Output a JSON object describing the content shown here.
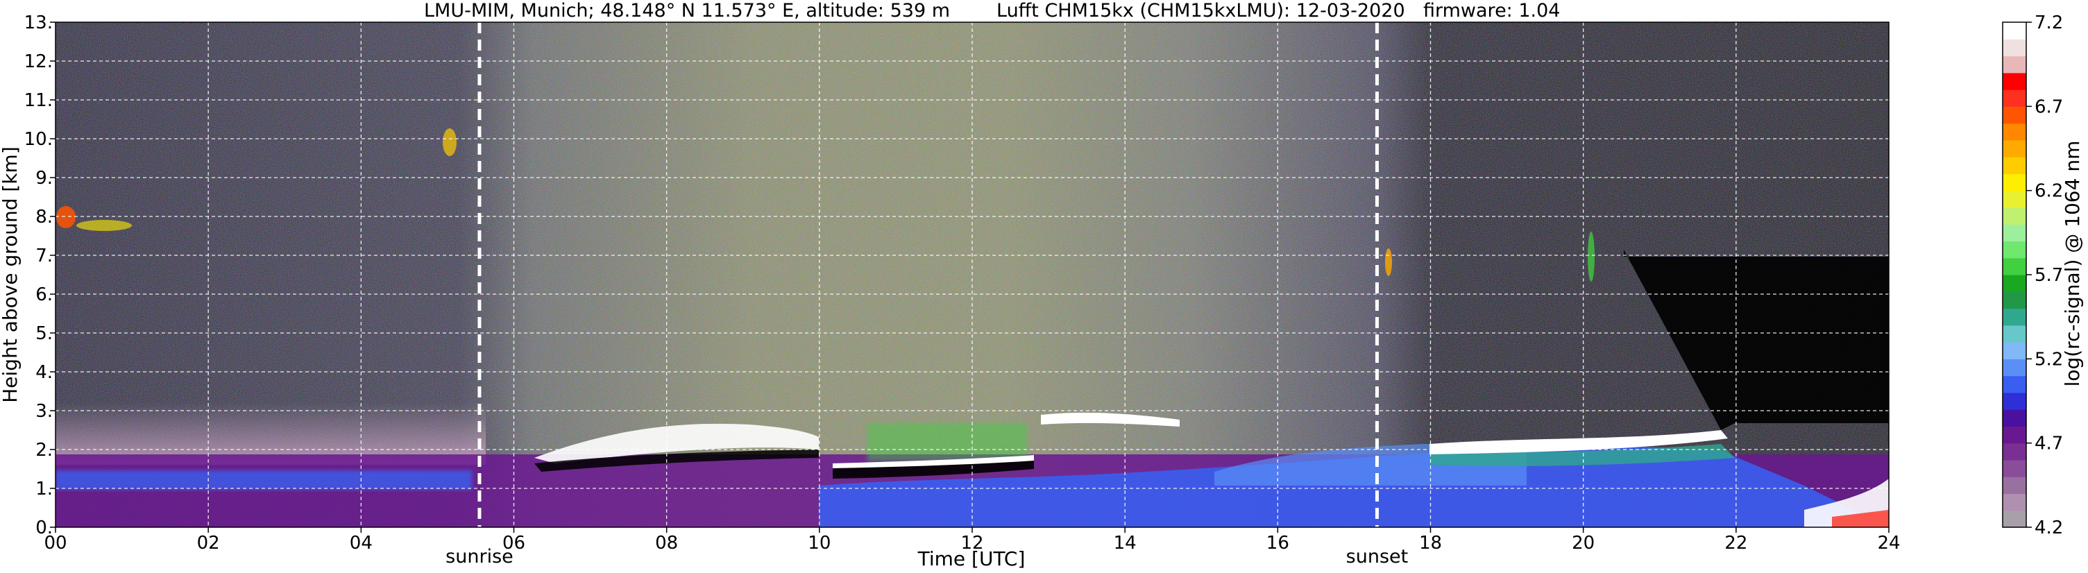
{
  "chart_data": {
    "type": "heatmap",
    "title_parts": [
      "LMU-MIM, Munich; 48.148° N 11.573° E, altitude: 539 m",
      "Lufft CHM15kx (CHM15kxLMU): 12-03-2020",
      "firmware: 1.04"
    ],
    "xlabel": "Time [UTC]",
    "ylabel": "Height above ground [km]",
    "xlim": [
      0,
      24
    ],
    "ylim": [
      0,
      13
    ],
    "x_ticks": [
      0,
      2,
      4,
      6,
      8,
      10,
      12,
      14,
      16,
      18,
      20,
      22,
      24
    ],
    "x_tick_labels": [
      "00",
      "02",
      "04",
      "06",
      "08",
      "10",
      "12",
      "14",
      "16",
      "18",
      "20",
      "22",
      "24"
    ],
    "y_ticks": [
      0,
      1,
      2,
      3,
      4,
      5,
      6,
      7,
      8,
      9,
      10,
      11,
      12,
      13
    ],
    "y_tick_labels": [
      "0.",
      "1.",
      "2.",
      "3.",
      "4.",
      "5.",
      "6.",
      "7.",
      "8.",
      "9.",
      "10.",
      "11.",
      "12.",
      "13."
    ],
    "grid": true,
    "event_lines": [
      {
        "time": 5.55,
        "label": "sunrise"
      },
      {
        "time": 17.3,
        "label": "sunset"
      }
    ],
    "colorbar": {
      "label": "log(rc-signal) @ 1064 nm",
      "range": [
        4.2,
        7.2
      ],
      "ticks": [
        4.2,
        4.7,
        5.2,
        5.7,
        6.2,
        6.7,
        7.2
      ],
      "tick_labels": [
        "4.2",
        "4.7",
        "5.2",
        "5.7",
        "6.2",
        "6.7",
        "7.2"
      ],
      "colors": [
        "#a8a0a8",
        "#b090b0",
        "#9a70a0",
        "#8a4d9a",
        "#7a2f93",
        "#6a1890",
        "#4a10a0",
        "#2f2fd8",
        "#3a5ef0",
        "#5a8ff5",
        "#80b8f8",
        "#66c8c8",
        "#30a890",
        "#209848",
        "#1aa820",
        "#40d040",
        "#70e870",
        "#9cf09c",
        "#c0f070",
        "#e8f030",
        "#ffee00",
        "#ffcc00",
        "#ffaa00",
        "#ff8800",
        "#ff5500",
        "#ff3020",
        "#ff0000",
        "#e8b8b8",
        "#f0e0e0",
        "#ffffff"
      ]
    },
    "dominant_colors": {
      "night_background": "#2b2440",
      "noise_day": "#b4b86a",
      "boundary_layer": "#3a5ef0",
      "residual_layer": "#6a1890",
      "cloud_base": "#ffffff",
      "no_signal": "#000000"
    }
  }
}
